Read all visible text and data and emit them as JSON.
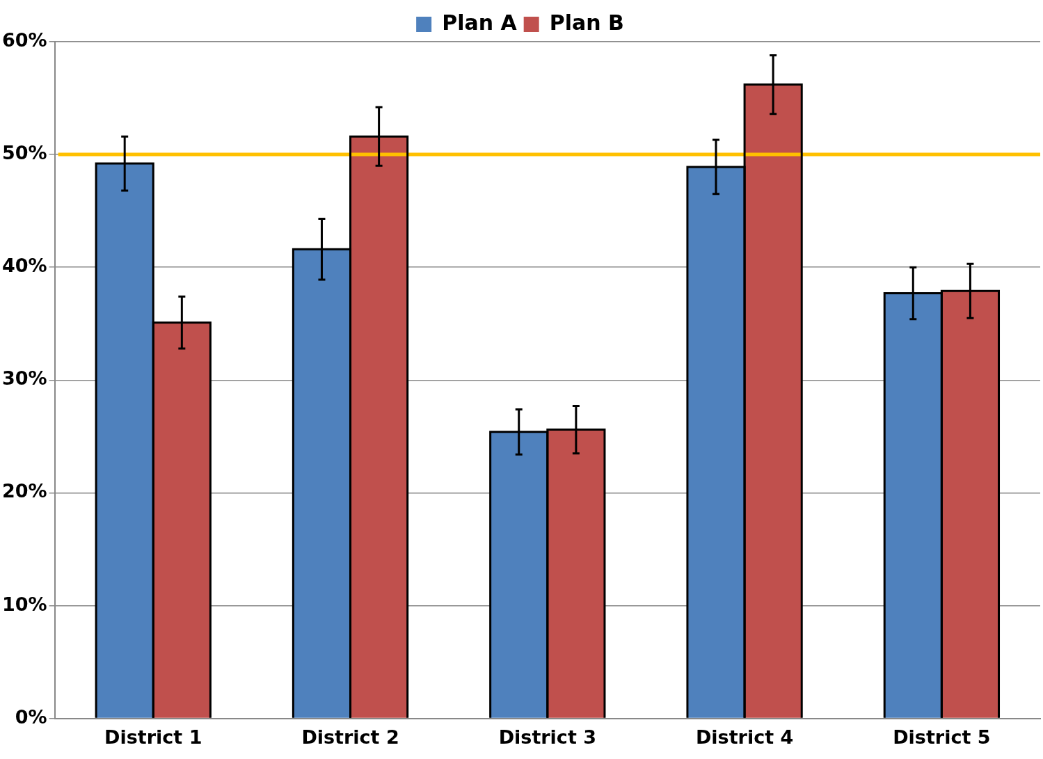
{
  "chart_data": {
    "type": "bar",
    "categories": [
      "District 1",
      "District 2",
      "District 3",
      "District 4",
      "District 5"
    ],
    "series": [
      {
        "name": "Plan A",
        "color": "#4f81bd",
        "values": [
          49.2,
          41.6,
          25.4,
          48.9,
          37.7
        ],
        "errors": [
          2.4,
          2.7,
          2.0,
          2.4,
          2.3
        ]
      },
      {
        "name": "Plan B",
        "color": "#c0504d",
        "values": [
          35.1,
          51.6,
          25.6,
          56.2,
          37.9
        ],
        "errors": [
          2.3,
          2.6,
          2.1,
          2.6,
          2.4
        ]
      }
    ],
    "ylim": [
      0,
      60
    ],
    "yticks": [
      {
        "value": 0,
        "label": "0%"
      },
      {
        "value": 10,
        "label": "10%"
      },
      {
        "value": 20,
        "label": "20%"
      },
      {
        "value": 30,
        "label": "30%"
      },
      {
        "value": 40,
        "label": "40%"
      },
      {
        "value": 50,
        "label": "50%"
      },
      {
        "value": 60,
        "label": "60%"
      }
    ],
    "ref_lines": [
      {
        "axis": "y",
        "value": 50,
        "color": "#ffc000"
      }
    ],
    "grid": "y",
    "legend": "top"
  }
}
